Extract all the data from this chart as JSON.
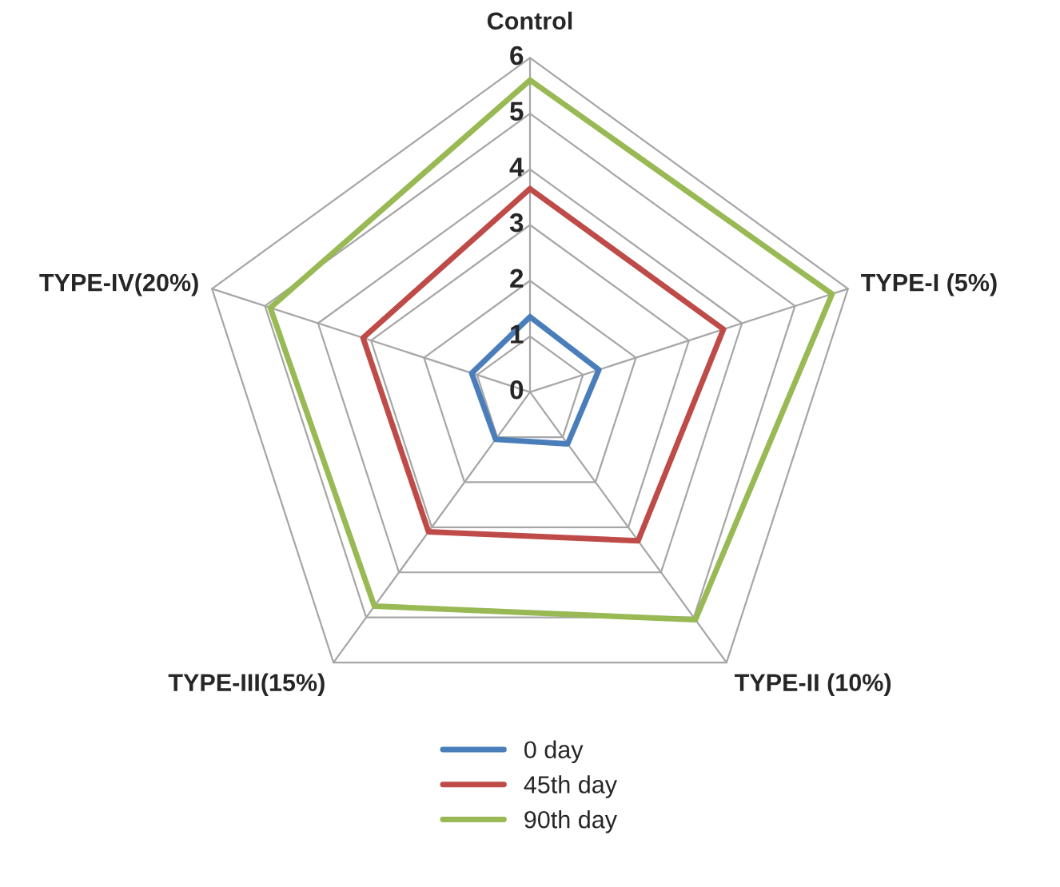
{
  "chart_data": {
    "type": "radar",
    "categories": [
      "Control",
      "TYPE-I (5%)",
      "TYPE-II (10%)",
      "TYPE-III(15%)",
      "TYPE-IV(20%)"
    ],
    "series": [
      {
        "name": "0 day",
        "color": "#4a7ebb",
        "values": [
          1.35,
          1.3,
          1.15,
          1.05,
          1.1
        ]
      },
      {
        "name": "45th day",
        "color": "#be4b48",
        "values": [
          3.65,
          3.65,
          3.3,
          3.1,
          3.15
        ]
      },
      {
        "name": "90th day",
        "color": "#98b954",
        "values": [
          5.6,
          5.7,
          5.05,
          4.75,
          4.9
        ]
      }
    ],
    "ylim": [
      0,
      6
    ],
    "yticks": [
      0,
      1,
      2,
      3,
      4,
      5,
      6
    ],
    "grid": true,
    "legend": "bottom",
    "marker": "none",
    "line_style": "solid"
  }
}
